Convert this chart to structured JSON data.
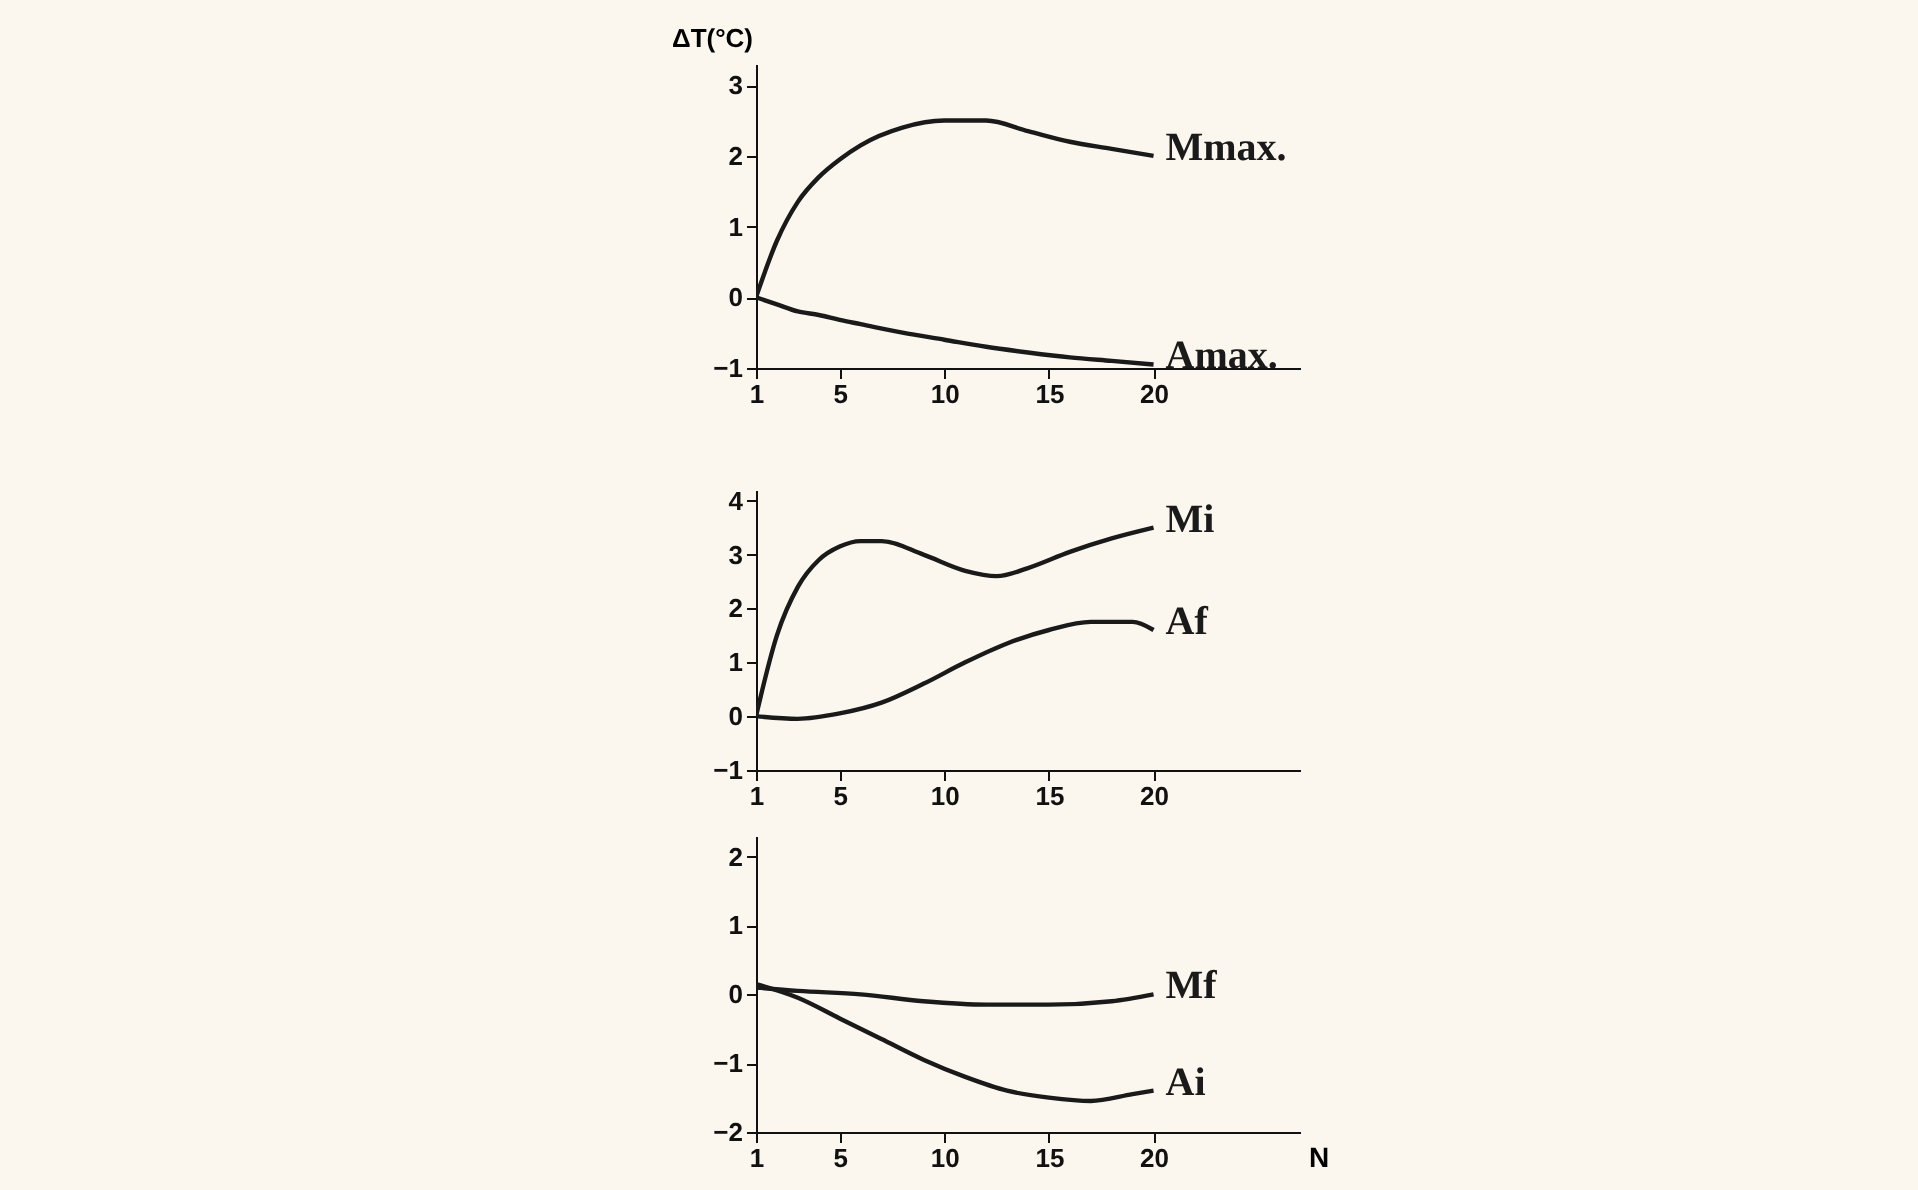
{
  "chart_data": [
    {
      "type": "line",
      "ylabel": "ΔT(°C)",
      "xlim": [
        1,
        27
      ],
      "xticks": [
        1,
        5,
        10,
        15,
        20
      ],
      "ylim": [
        -1,
        3.3
      ],
      "yticks": [
        -1,
        0,
        1,
        2,
        3
      ],
      "grid": false,
      "legend": false,
      "marker": "none",
      "line_style": "solid",
      "series": [
        {
          "name": "Mmax.",
          "color": "#1a1a1a",
          "x": [
            1,
            2,
            3,
            4,
            5,
            6,
            8,
            10,
            12,
            14,
            16,
            18,
            20
          ],
          "values": [
            0,
            0.8,
            1.35,
            1.7,
            1.95,
            2.15,
            2.4,
            2.5,
            2.5,
            2.35,
            2.2,
            2.1,
            2.0
          ]
        },
        {
          "name": "Amax.",
          "color": "#1a1a1a",
          "x": [
            1,
            2,
            3,
            4,
            5,
            6,
            8,
            10,
            12,
            14,
            16,
            18,
            20
          ],
          "values": [
            0,
            -0.1,
            -0.2,
            -0.25,
            -0.32,
            -0.38,
            -0.5,
            -0.6,
            -0.7,
            -0.78,
            -0.85,
            -0.9,
            -0.95
          ]
        }
      ]
    },
    {
      "type": "line",
      "xlim": [
        1,
        27
      ],
      "xticks": [
        1,
        5,
        10,
        15,
        20
      ],
      "ylim": [
        -1,
        4.2
      ],
      "yticks": [
        -1,
        0,
        1,
        2,
        3,
        4
      ],
      "grid": false,
      "legend": false,
      "marker": "none",
      "line_style": "solid",
      "series": [
        {
          "name": "Mi",
          "color": "#1a1a1a",
          "x": [
            1,
            2,
            3,
            4,
            5,
            6,
            7,
            9,
            11,
            12.5,
            14,
            16,
            18,
            20
          ],
          "values": [
            0,
            1.5,
            2.4,
            2.9,
            3.15,
            3.25,
            3.25,
            3.0,
            2.7,
            2.6,
            2.75,
            3.05,
            3.3,
            3.5
          ]
        },
        {
          "name": "Af",
          "color": "#1a1a1a",
          "x": [
            1,
            3,
            5,
            7,
            9,
            11,
            13,
            15,
            17,
            19,
            20
          ],
          "values": [
            0,
            -0.05,
            0.05,
            0.25,
            0.6,
            1.0,
            1.35,
            1.6,
            1.75,
            1.75,
            1.6
          ]
        }
      ]
    },
    {
      "type": "line",
      "xlabel": "N",
      "xlim": [
        1,
        27
      ],
      "xticks": [
        1,
        5,
        10,
        15,
        20
      ],
      "ylim": [
        -2,
        2.3
      ],
      "yticks": [
        -2,
        -1,
        0,
        1,
        2
      ],
      "grid": false,
      "legend": false,
      "marker": "none",
      "line_style": "solid",
      "series": [
        {
          "name": "Mf",
          "color": "#1a1a1a",
          "x": [
            1,
            3,
            6,
            9,
            12,
            15,
            18,
            20
          ],
          "values": [
            0.1,
            0.05,
            0,
            -0.1,
            -0.15,
            -0.15,
            -0.1,
            0
          ]
        },
        {
          "name": "Ai",
          "color": "#1a1a1a",
          "x": [
            1,
            3,
            5,
            7,
            9,
            11,
            13,
            15,
            17,
            19,
            20
          ],
          "values": [
            0.15,
            -0.05,
            -0.35,
            -0.65,
            -0.95,
            -1.2,
            -1.4,
            -1.5,
            -1.55,
            -1.45,
            -1.4
          ]
        }
      ]
    }
  ]
}
